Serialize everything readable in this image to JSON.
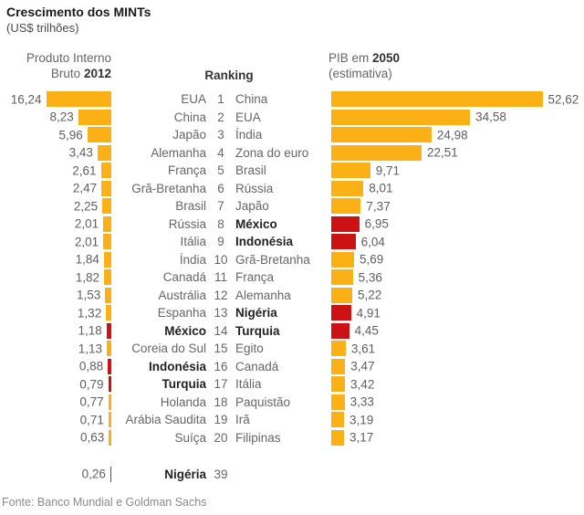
{
  "title": "Crescimento dos MINTs",
  "subtitle": "(US$ trilhões)",
  "headers": {
    "left": {
      "line1": "Produto Interno",
      "line2_text": "Bruto ",
      "line2_bold": "2012"
    },
    "center": "Ranking",
    "right": {
      "line1_text": "PIB em ",
      "line1_bold": "2050",
      "line2": "(estimativa)"
    }
  },
  "footer": "Fonte: Banco Mundial e Goldman Sachs",
  "colors": {
    "bar_orange": "#FBB116",
    "bar_mint_red": "#CC1212"
  },
  "chart_data": {
    "type": "bar",
    "title": "Crescimento dos MINTs",
    "unit": "US$ trilhões",
    "left_series_name": "Produto Interno Bruto 2012",
    "right_series_name": "PIB em 2050 (estimativa)",
    "mint_countries": [
      "México",
      "Indonésia",
      "Nigéria",
      "Turquia"
    ],
    "rows": [
      {
        "rank": 1,
        "gdp2012": {
          "country": "EUA",
          "value": 16.24,
          "mint": false
        },
        "gdp2050": {
          "country": "China",
          "value": 52.62,
          "mint": false
        }
      },
      {
        "rank": 2,
        "gdp2012": {
          "country": "China",
          "value": 8.23,
          "mint": false
        },
        "gdp2050": {
          "country": "EUA",
          "value": 34.58,
          "mint": false
        }
      },
      {
        "rank": 3,
        "gdp2012": {
          "country": "Japão",
          "value": 5.96,
          "mint": false
        },
        "gdp2050": {
          "country": "Índia",
          "value": 24.98,
          "mint": false
        }
      },
      {
        "rank": 4,
        "gdp2012": {
          "country": "Alemanha",
          "value": 3.43,
          "mint": false
        },
        "gdp2050": {
          "country": "Zona do euro",
          "value": 22.51,
          "mint": false
        }
      },
      {
        "rank": 5,
        "gdp2012": {
          "country": "França",
          "value": 2.61,
          "mint": false
        },
        "gdp2050": {
          "country": "Brasil",
          "value": 9.71,
          "mint": false
        }
      },
      {
        "rank": 6,
        "gdp2012": {
          "country": "Grã-Bretanha",
          "value": 2.47,
          "mint": false
        },
        "gdp2050": {
          "country": "Rússia",
          "value": 8.01,
          "mint": false
        }
      },
      {
        "rank": 7,
        "gdp2012": {
          "country": "Brasil",
          "value": 2.25,
          "mint": false
        },
        "gdp2050": {
          "country": "Japão",
          "value": 7.37,
          "mint": false
        }
      },
      {
        "rank": 8,
        "gdp2012": {
          "country": "Rússia",
          "value": 2.01,
          "mint": false
        },
        "gdp2050": {
          "country": "México",
          "value": 6.95,
          "mint": true
        }
      },
      {
        "rank": 9,
        "gdp2012": {
          "country": "Itália",
          "value": 2.01,
          "mint": false
        },
        "gdp2050": {
          "country": "Indonésia",
          "value": 6.04,
          "mint": true
        }
      },
      {
        "rank": 10,
        "gdp2012": {
          "country": "Índia",
          "value": 1.84,
          "mint": false
        },
        "gdp2050": {
          "country": "Grã-Bretanha",
          "value": 5.69,
          "mint": false
        }
      },
      {
        "rank": 11,
        "gdp2012": {
          "country": "Canadá",
          "value": 1.82,
          "mint": false
        },
        "gdp2050": {
          "country": "França",
          "value": 5.36,
          "mint": false
        }
      },
      {
        "rank": 12,
        "gdp2012": {
          "country": "Austrália",
          "value": 1.53,
          "mint": false
        },
        "gdp2050": {
          "country": "Alemanha",
          "value": 5.22,
          "mint": false
        }
      },
      {
        "rank": 13,
        "gdp2012": {
          "country": "Espanha",
          "value": 1.32,
          "mint": false
        },
        "gdp2050": {
          "country": "Nigéria",
          "value": 4.91,
          "mint": true
        }
      },
      {
        "rank": 14,
        "gdp2012": {
          "country": "México",
          "value": 1.18,
          "mint": true
        },
        "gdp2050": {
          "country": "Turquia",
          "value": 4.45,
          "mint": true
        }
      },
      {
        "rank": 15,
        "gdp2012": {
          "country": "Coreia do Sul",
          "value": 1.13,
          "mint": false
        },
        "gdp2050": {
          "country": "Egito",
          "value": 3.61,
          "mint": false
        }
      },
      {
        "rank": 16,
        "gdp2012": {
          "country": "Indonésia",
          "value": 0.88,
          "mint": true
        },
        "gdp2050": {
          "country": "Canadá",
          "value": 3.47,
          "mint": false
        }
      },
      {
        "rank": 17,
        "gdp2012": {
          "country": "Turquia",
          "value": 0.79,
          "mint": true
        },
        "gdp2050": {
          "country": "Itália",
          "value": 3.42,
          "mint": false
        }
      },
      {
        "rank": 18,
        "gdp2012": {
          "country": "Holanda",
          "value": 0.77,
          "mint": false
        },
        "gdp2050": {
          "country": "Paquistão",
          "value": 3.33,
          "mint": false
        }
      },
      {
        "rank": 19,
        "gdp2012": {
          "country": "Arábia Saudita",
          "value": 0.71,
          "mint": false
        },
        "gdp2050": {
          "country": "Irã",
          "value": 3.19,
          "mint": false
        }
      },
      {
        "rank": 20,
        "gdp2012": {
          "country": "Suíça",
          "value": 0.63,
          "mint": false
        },
        "gdp2050": {
          "country": "Filipinas",
          "value": 3.17,
          "mint": false
        }
      }
    ],
    "extra_row": {
      "rank": 39,
      "gdp2012": {
        "country": "Nigéria",
        "value": 0.26,
        "mint": true
      }
    }
  }
}
